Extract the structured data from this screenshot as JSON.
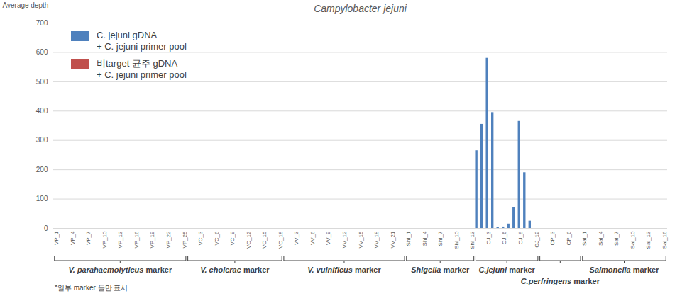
{
  "chart_data": {
    "type": "bar",
    "title": "Campylobacter jejuni",
    "ylabel": "Average depth",
    "ylim": [
      0,
      700
    ],
    "yticks": [
      0,
      100,
      200,
      300,
      400,
      500,
      600,
      700
    ],
    "grid": true,
    "legend": "top-left",
    "annotation": "*일부 marker 들만 표시",
    "categories": [
      "VP_1",
      null,
      null,
      "VP_4",
      null,
      null,
      "VP_7",
      null,
      null,
      "VP_10",
      null,
      null,
      "VP_13",
      null,
      null,
      "VP_16",
      null,
      null,
      "VP_19",
      null,
      null,
      "VP_22",
      null,
      null,
      "VP_25",
      null,
      null,
      "VC_3",
      null,
      null,
      "VC_6",
      null,
      null,
      "VC_9",
      null,
      null,
      "VC_12",
      null,
      null,
      "VC_15",
      null,
      null,
      "VC_18",
      null,
      null,
      "VV_3",
      null,
      null,
      "VV_6",
      null,
      null,
      "VV_9",
      null,
      null,
      "VV_12",
      null,
      null,
      "VV_15",
      null,
      null,
      "VV_18",
      null,
      null,
      "VV_21",
      null,
      null,
      "ShI_1",
      null,
      null,
      "ShI_4",
      null,
      null,
      "ShI_7",
      null,
      null,
      "ShI_10",
      null,
      null,
      "ShI_13",
      null,
      null,
      "CJ_3",
      null,
      null,
      "CJ_6",
      null,
      null,
      "CJ_9",
      null,
      null,
      "CJ_12",
      null,
      null,
      "CP_3",
      null,
      null,
      "CP_6",
      null,
      null,
      "Sal_1",
      null,
      null,
      "Sal_4",
      null,
      null,
      "Sal_7",
      null,
      null,
      "Sal_10",
      null,
      null,
      "Sal_13",
      null,
      null,
      "Sal_16"
    ],
    "groups": [
      {
        "label": "V. parahaemolyticus marker",
        "count": 25
      },
      {
        "label": "V. cholerae marker",
        "count": 18
      },
      {
        "label": "V. vulnificus marker",
        "count": 23
      },
      {
        "label": "Shigella marker",
        "count": 13
      },
      {
        "label": "C.jejuni marker",
        "count": 12
      },
      {
        "label": "C.perfringens marker",
        "count": 8
      },
      {
        "label": "Salmonella marker",
        "count": 16
      }
    ],
    "series": [
      {
        "name": "C. jejuni gDNA + C. jejuni primer pool",
        "color": "#4f81bd",
        "values": [
          0,
          0,
          0,
          0,
          0,
          0,
          0,
          0,
          0,
          0,
          0,
          0,
          0,
          0,
          0,
          0,
          0,
          0,
          0,
          0,
          0,
          0,
          0,
          0,
          0,
          0,
          0,
          0,
          0,
          0,
          0,
          0,
          0,
          0,
          0,
          0,
          0,
          0,
          0,
          0,
          0,
          0,
          0,
          0,
          0,
          0,
          0,
          0,
          0,
          0,
          0,
          0,
          0,
          0,
          0,
          0,
          0,
          0,
          0,
          0,
          0,
          0,
          0,
          0,
          0,
          0,
          0,
          0,
          0,
          0,
          0,
          0,
          0,
          0,
          0,
          0,
          0,
          0,
          0,
          265,
          355,
          580,
          395,
          3,
          5,
          15,
          70,
          365,
          190,
          25,
          0,
          0,
          0,
          0,
          0,
          0,
          0,
          0,
          0,
          0,
          0,
          0,
          0,
          0,
          0,
          0,
          0,
          0,
          0,
          0,
          0,
          0,
          0,
          0,
          0
        ]
      },
      {
        "name": "비target 균주 gDNA + C. jejuni primer pool",
        "color": "#c0504d",
        "values": [
          0,
          0,
          0,
          0,
          0,
          0,
          0,
          0,
          0,
          0,
          0,
          0,
          0,
          0,
          0,
          0,
          0,
          0,
          0,
          0,
          0,
          0,
          0,
          0,
          0,
          0,
          0,
          0,
          0,
          0,
          0,
          0,
          0,
          0,
          0,
          0,
          0,
          0,
          0,
          0,
          0,
          0,
          0,
          0,
          0,
          0,
          0,
          0,
          0,
          0,
          0,
          0,
          0,
          0,
          0,
          0,
          0,
          0,
          0,
          0,
          0,
          0,
          0,
          0,
          0,
          0,
          0,
          0,
          0,
          0,
          0,
          0,
          0,
          0,
          0,
          0,
          0,
          0,
          0,
          0,
          0,
          0,
          0,
          0,
          0,
          0,
          0,
          0,
          0,
          0,
          0,
          0,
          0,
          0,
          0,
          0,
          0,
          0,
          0,
          0,
          0,
          0,
          0,
          0,
          0,
          0,
          0,
          0,
          0,
          0,
          0,
          0,
          0,
          0,
          0
        ]
      }
    ]
  }
}
